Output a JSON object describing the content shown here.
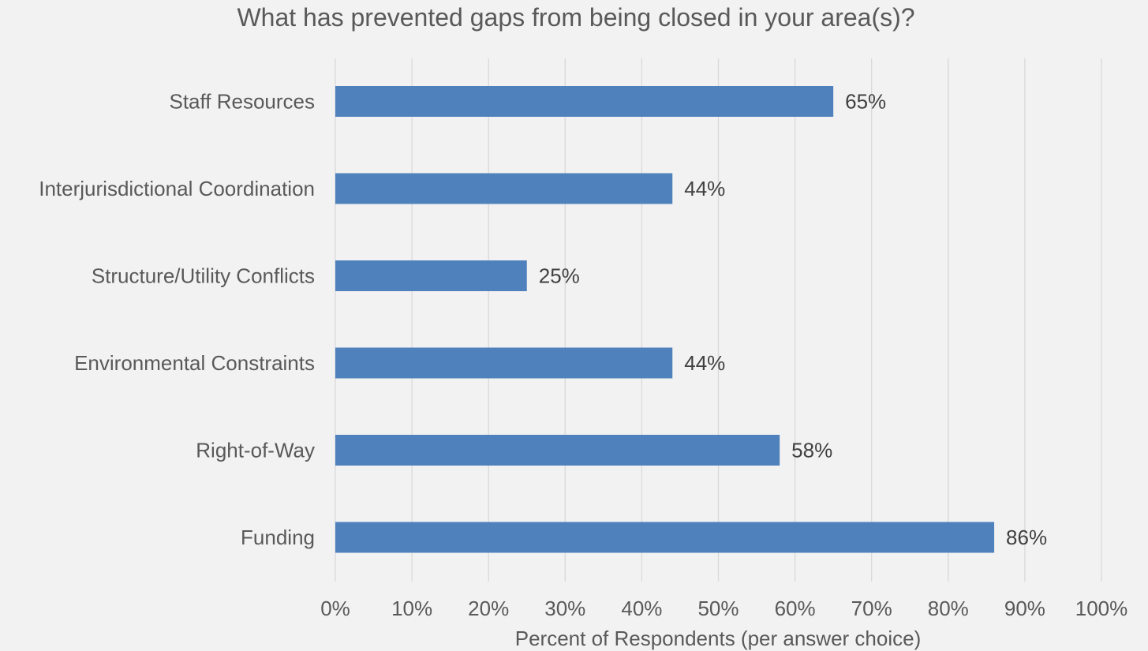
{
  "chart_data": {
    "type": "bar",
    "orientation": "horizontal",
    "title": "What has prevented gaps from being closed in your area(s)?",
    "xlabel": "Percent of Respondents (per answer choice)",
    "ylabel": "",
    "categories": [
      "Staff Resources",
      "Interjurisdictional Coordination",
      "Structure/Utility Conflicts",
      "Environmental Constraints",
      "Right-of-Way",
      "Funding"
    ],
    "values": [
      65,
      44,
      25,
      44,
      58,
      86
    ],
    "value_labels": [
      "65%",
      "44%",
      "25%",
      "44%",
      "58%",
      "86%"
    ],
    "xlim": [
      0,
      100
    ],
    "x_ticks": [
      "0%",
      "10%",
      "20%",
      "30%",
      "40%",
      "50%",
      "60%",
      "70%",
      "80%",
      "90%",
      "100%"
    ],
    "grid": "vertical",
    "legend": "none",
    "colors": {
      "bar": "#4f81bd",
      "background": "#f2f2f2",
      "grid": "#d9d9d9",
      "text": "#595959"
    }
  }
}
